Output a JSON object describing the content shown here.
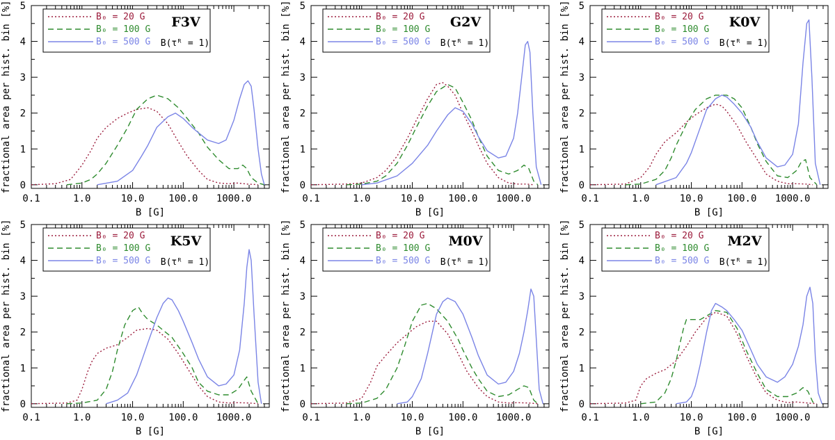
{
  "chart_data": {
    "type": "line",
    "x_scale": "log",
    "xlabel": "B [G]",
    "ylabel": "fractional area per hist. bin [%]",
    "xlim": [
      0.1,
      5000
    ],
    "ylim": [
      -0.1,
      5
    ],
    "x_tick_labels": [
      "0.1",
      "1.0",
      "10.0",
      "100.0",
      "1000.0"
    ],
    "x_tick_values": [
      0.1,
      1,
      10,
      100,
      1000
    ],
    "y_tick_labels": [
      "0",
      "1",
      "2",
      "3",
      "4",
      "5"
    ],
    "y_tick_values": [
      0,
      1,
      2,
      3,
      4,
      5
    ],
    "legend": {
      "series_labels": [
        "B₀ = 20 G",
        "B₀ = 100 G",
        "B₀ = 500 G"
      ],
      "note": "B(τᴿ = 1)"
    },
    "series_styles": [
      {
        "name": "B0 = 20 G",
        "color": "#9b1b3b",
        "dash": "2,3"
      },
      {
        "name": "B0 = 100 G",
        "color": "#2e8b2e",
        "dash": "8,5"
      },
      {
        "name": "B0 = 500 G",
        "color": "#7a84e6",
        "dash": ""
      }
    ],
    "panels": [
      {
        "star": "F3V",
        "series": [
          {
            "name": "B0 = 20 G",
            "x": [
              0.1,
              0.3,
              0.6,
              1,
              1.5,
              2,
              3,
              5,
              8,
              12,
              20,
              30,
              50,
              80,
              120,
              200,
              300,
              500,
              800,
              1200,
              1800,
              2500,
              3000
            ],
            "y": [
              0,
              0.03,
              0.15,
              0.55,
              0.95,
              1.3,
              1.6,
              1.85,
              2.0,
              2.1,
              2.15,
              2.05,
              1.7,
              1.2,
              0.8,
              0.4,
              0.15,
              0.05,
              0.03,
              0.05,
              0.02,
              0.01,
              0
            ]
          },
          {
            "name": "B0 = 100 G",
            "x": [
              0.5,
              1,
              1.5,
              2,
              3,
              5,
              8,
              12,
              20,
              30,
              50,
              80,
              120,
              200,
              300,
              500,
              800,
              1200,
              1500,
              1800,
              2200,
              3000,
              4000
            ],
            "y": [
              0,
              0.05,
              0.15,
              0.3,
              0.6,
              1.1,
              1.6,
              2.1,
              2.4,
              2.5,
              2.4,
              2.15,
              1.85,
              1.45,
              1.05,
              0.7,
              0.45,
              0.45,
              0.55,
              0.45,
              0.2,
              0.05,
              0
            ]
          },
          {
            "name": "B0 = 500 G",
            "x": [
              2,
              5,
              10,
              15,
              20,
              30,
              50,
              70,
              100,
              150,
              200,
              300,
              500,
              700,
              1000,
              1300,
              1600,
              1900,
              2200,
              2500,
              3000,
              3500,
              4000
            ],
            "y": [
              0,
              0.1,
              0.4,
              0.8,
              1.1,
              1.6,
              1.9,
              2.0,
              1.85,
              1.6,
              1.45,
              1.25,
              1.15,
              1.25,
              1.8,
              2.4,
              2.8,
              2.9,
              2.75,
              2.1,
              1.0,
              0.3,
              0
            ]
          }
        ]
      },
      {
        "star": "G2V",
        "series": [
          {
            "name": "B0 = 20 G",
            "x": [
              0.1,
              0.5,
              1,
              2,
              3,
              5,
              8,
              12,
              20,
              30,
              40,
              50,
              70,
              100,
              150,
              200,
              300,
              500,
              800,
              1200,
              1800,
              2500
            ],
            "y": [
              0,
              0.02,
              0.05,
              0.2,
              0.4,
              0.8,
              1.3,
              1.8,
              2.4,
              2.8,
              2.85,
              2.75,
              2.5,
              2.0,
              1.5,
              1.1,
              0.6,
              0.2,
              0.05,
              0.02,
              0.02,
              0
            ]
          },
          {
            "name": "B0 = 100 G",
            "x": [
              0.5,
              1,
              2,
              3,
              5,
              8,
              12,
              20,
              30,
              50,
              70,
              100,
              150,
              200,
              300,
              500,
              800,
              1200,
              1600,
              2000,
              2500,
              3000
            ],
            "y": [
              0,
              0.02,
              0.1,
              0.25,
              0.6,
              1.1,
              1.6,
              2.2,
              2.6,
              2.8,
              2.7,
              2.3,
              1.8,
              1.35,
              0.8,
              0.4,
              0.3,
              0.4,
              0.55,
              0.45,
              0.1,
              0
            ]
          },
          {
            "name": "B0 = 500 G",
            "x": [
              1,
              2,
              5,
              10,
              20,
              30,
              50,
              70,
              100,
              150,
              200,
              300,
              500,
              700,
              1000,
              1200,
              1500,
              1700,
              1900,
              2100,
              2400,
              2800,
              3500
            ],
            "y": [
              0,
              0.05,
              0.25,
              0.6,
              1.1,
              1.5,
              1.95,
              2.15,
              2.05,
              1.7,
              1.35,
              0.95,
              0.75,
              0.8,
              1.3,
              2.0,
              3.2,
              3.9,
              4.0,
              3.7,
              2.0,
              0.5,
              0
            ]
          }
        ]
      },
      {
        "star": "K0V",
        "series": [
          {
            "name": "B0 = 20 G",
            "x": [
              0.1,
              0.5,
              1,
              1.5,
              2,
              3,
              5,
              8,
              12,
              20,
              30,
              40,
              50,
              80,
              120,
              200,
              300,
              500,
              800,
              1200,
              1800,
              2500
            ],
            "y": [
              0,
              0.02,
              0.2,
              0.5,
              0.85,
              1.2,
              1.45,
              1.75,
              1.95,
              2.15,
              2.25,
              2.2,
              2.05,
              1.65,
              1.2,
              0.7,
              0.3,
              0.1,
              0.03,
              0.03,
              0.02,
              0
            ]
          },
          {
            "name": "B0 = 100 G",
            "x": [
              0.5,
              1,
              2,
              3,
              4,
              5,
              8,
              12,
              20,
              30,
              50,
              70,
              100,
              150,
              200,
              300,
              500,
              800,
              1200,
              1500,
              1800,
              2200,
              3000
            ],
            "y": [
              0,
              0.02,
              0.15,
              0.4,
              0.75,
              1.1,
              1.7,
              2.1,
              2.4,
              2.5,
              2.5,
              2.4,
              2.15,
              1.6,
              1.15,
              0.65,
              0.25,
              0.2,
              0.4,
              0.65,
              0.7,
              0.2,
              0
            ]
          },
          {
            "name": "B0 = 500 G",
            "x": [
              2,
              5,
              8,
              10,
              15,
              20,
              30,
              40,
              50,
              70,
              100,
              150,
              200,
              300,
              500,
              700,
              1000,
              1300,
              1600,
              1900,
              2100,
              2400,
              2800,
              3500
            ],
            "y": [
              0,
              0.2,
              0.6,
              0.9,
              1.6,
              2.1,
              2.4,
              2.5,
              2.45,
              2.25,
              2.0,
              1.6,
              1.2,
              0.75,
              0.5,
              0.55,
              0.85,
              1.7,
              3.4,
              4.5,
              4.6,
              3.0,
              0.6,
              0
            ]
          }
        ]
      },
      {
        "star": "K5V",
        "series": [
          {
            "name": "B0 = 20 G",
            "x": [
              0.1,
              0.5,
              0.8,
              1,
              1.3,
              1.6,
              2,
              3,
              4,
              5,
              8,
              12,
              20,
              30,
              50,
              80,
              120,
              200,
              300,
              500,
              800,
              1200,
              2000,
              3000
            ],
            "y": [
              0,
              0.02,
              0.1,
              0.4,
              0.9,
              1.2,
              1.4,
              1.55,
              1.6,
              1.65,
              1.85,
              2.05,
              2.1,
              2.05,
              1.8,
              1.4,
              1.0,
              0.5,
              0.2,
              0.05,
              0.02,
              0.03,
              0.02,
              0
            ]
          },
          {
            "name": "B0 = 100 G",
            "x": [
              0.5,
              1,
              2,
              3,
              4,
              5,
              7,
              10,
              13,
              16,
              20,
              30,
              40,
              60,
              100,
              150,
              200,
              300,
              500,
              800,
              1200,
              1500,
              1800,
              2200,
              3000
            ],
            "y": [
              0,
              0.02,
              0.1,
              0.4,
              0.9,
              1.5,
              2.2,
              2.6,
              2.7,
              2.5,
              2.35,
              2.2,
              2.05,
              1.85,
              1.4,
              1.0,
              0.6,
              0.35,
              0.25,
              0.25,
              0.4,
              0.6,
              0.75,
              0.35,
              0
            ]
          },
          {
            "name": "B0 = 500 G",
            "x": [
              3,
              5,
              8,
              12,
              16,
              20,
              30,
              40,
              50,
              60,
              80,
              100,
              150,
              200,
              300,
              500,
              700,
              1000,
              1300,
              1600,
              1800,
              2000,
              2200,
              2500,
              3000,
              3500
            ],
            "y": [
              0,
              0.1,
              0.3,
              0.8,
              1.3,
              1.7,
              2.4,
              2.8,
              2.95,
              2.9,
              2.6,
              2.3,
              1.7,
              1.25,
              0.75,
              0.5,
              0.55,
              0.8,
              1.5,
              2.8,
              3.8,
              4.3,
              4.0,
              2.5,
              0.6,
              0
            ]
          }
        ]
      },
      {
        "star": "M0V",
        "series": [
          {
            "name": "B0 = 20 G",
            "x": [
              0.1,
              0.5,
              1,
              1.5,
              2,
              3,
              5,
              8,
              12,
              20,
              30,
              50,
              80,
              120,
              200,
              300,
              500,
              800,
              1200,
              2000,
              3000
            ],
            "y": [
              0,
              0.02,
              0.15,
              0.6,
              1.05,
              1.35,
              1.7,
              1.95,
              2.15,
              2.3,
              2.3,
              1.95,
              1.4,
              0.9,
              0.45,
              0.2,
              0.05,
              0.02,
              0.03,
              0.02,
              0
            ]
          },
          {
            "name": "B0 = 100 G",
            "x": [
              0.5,
              1,
              2,
              3,
              5,
              7,
              10,
              15,
              20,
              30,
              50,
              80,
              100,
              150,
              200,
              300,
              500,
              800,
              1200,
              1600,
              2000,
              2500,
              3000
            ],
            "y": [
              0,
              0.02,
              0.15,
              0.4,
              1.0,
              1.6,
              2.3,
              2.75,
              2.8,
              2.65,
              2.3,
              1.8,
              1.5,
              1.0,
              0.7,
              0.35,
              0.2,
              0.25,
              0.4,
              0.5,
              0.45,
              0.1,
              0
            ]
          },
          {
            "name": "B0 = 500 G",
            "x": [
              5,
              8,
              10,
              15,
              20,
              25,
              30,
              40,
              50,
              70,
              100,
              150,
              200,
              300,
              500,
              700,
              1000,
              1300,
              1600,
              1900,
              2200,
              2500,
              2800,
              3200,
              3800
            ],
            "y": [
              0,
              0.05,
              0.2,
              0.7,
              1.4,
              2.0,
              2.5,
              2.85,
              2.95,
              2.85,
              2.5,
              1.85,
              1.35,
              0.8,
              0.55,
              0.6,
              0.9,
              1.4,
              2.0,
              2.6,
              3.2,
              3.0,
              1.8,
              0.4,
              0
            ]
          }
        ]
      },
      {
        "star": "M2V",
        "series": [
          {
            "name": "B0 = 20 G",
            "x": [
              0.1,
              0.5,
              0.8,
              1,
              1.3,
              2,
              3,
              5,
              8,
              12,
              20,
              30,
              50,
              80,
              120,
              200,
              300,
              500,
              800,
              1200,
              2000,
              3000
            ],
            "y": [
              0,
              0.02,
              0.1,
              0.5,
              0.7,
              0.85,
              0.95,
              1.2,
              1.6,
              2.0,
              2.4,
              2.55,
              2.45,
              1.95,
              1.35,
              0.7,
              0.3,
              0.1,
              0.03,
              0.05,
              0.02,
              0
            ]
          },
          {
            "name": "B0 = 100 G",
            "x": [
              1,
              2,
              3,
              4,
              5,
              6,
              7,
              8,
              10,
              15,
              20,
              30,
              50,
              80,
              120,
              200,
              300,
              500,
              800,
              1200,
              1600,
              2000,
              2500,
              3000
            ],
            "y": [
              0,
              0.05,
              0.3,
              0.7,
              1.2,
              1.7,
              2.1,
              2.35,
              2.35,
              2.35,
              2.45,
              2.6,
              2.55,
              2.1,
              1.5,
              0.85,
              0.4,
              0.2,
              0.2,
              0.3,
              0.45,
              0.35,
              0.05,
              0
            ]
          },
          {
            "name": "B0 = 500 G",
            "x": [
              5,
              8,
              10,
              12,
              15,
              20,
              25,
              30,
              40,
              50,
              70,
              100,
              150,
              200,
              300,
              500,
              700,
              1000,
              1300,
              1600,
              1900,
              2200,
              2500,
              2800,
              3200,
              3800
            ],
            "y": [
              0,
              0.05,
              0.2,
              0.5,
              1.1,
              2.0,
              2.6,
              2.8,
              2.7,
              2.6,
              2.35,
              2.05,
              1.5,
              1.1,
              0.75,
              0.6,
              0.75,
              1.1,
              1.6,
              2.2,
              3.0,
              3.25,
              2.8,
              1.3,
              0.3,
              0
            ]
          }
        ]
      }
    ]
  }
}
